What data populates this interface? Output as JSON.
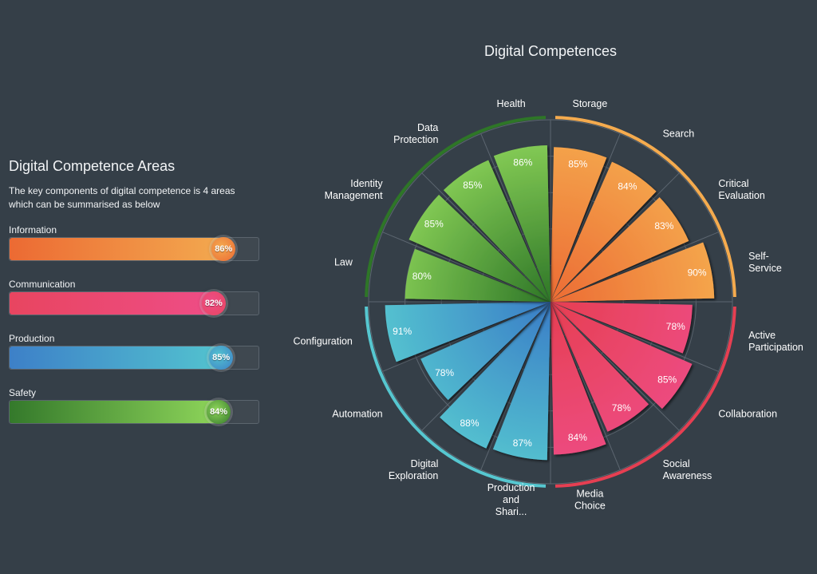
{
  "left_panel": {
    "title": "Digital Competence Areas",
    "description": "The key components of digital competence is 4 areas which can be summarised as below",
    "areas": [
      {
        "label": "Information",
        "value": 86,
        "value_label": "86%",
        "color_start": "#ec6a33",
        "color_end": "#f3a94f"
      },
      {
        "label": "Communication",
        "value": 82,
        "value_label": "82%",
        "color_start": "#e84560",
        "color_end": "#ee4d86"
      },
      {
        "label": "Production",
        "value": 85,
        "value_label": "85%",
        "color_start": "#3d80c8",
        "color_end": "#53c3cf"
      },
      {
        "label": "Safety",
        "value": 84,
        "value_label": "84%",
        "color_start": "#34792b",
        "color_end": "#8ed55a"
      }
    ]
  },
  "chart_data": {
    "type": "polar-bar",
    "title": "Digital Competences",
    "rmax": 100,
    "grid": true,
    "categories": [
      {
        "label": [
          "Storage"
        ],
        "value": 85,
        "value_label": "85%",
        "group": 0
      },
      {
        "label": [
          "Search"
        ],
        "value": 84,
        "value_label": "84%",
        "group": 0
      },
      {
        "label": [
          "Critical",
          "Evaluation"
        ],
        "value": 83,
        "value_label": "83%",
        "group": 0
      },
      {
        "label": [
          "Self-",
          "Service"
        ],
        "value": 90,
        "value_label": "90%",
        "group": 0
      },
      {
        "label": [
          "Active",
          "Participation"
        ],
        "value": 78,
        "value_label": "78%",
        "group": 1
      },
      {
        "label": [
          "Collaboration"
        ],
        "value": 85,
        "value_label": "85%",
        "group": 1
      },
      {
        "label": [
          "Social",
          "Awareness"
        ],
        "value": 78,
        "value_label": "78%",
        "group": 1
      },
      {
        "label": [
          "Media",
          "Choice"
        ],
        "value": 84,
        "value_label": "84%",
        "group": 1
      },
      {
        "label": [
          "Production",
          "and",
          "Shari..."
        ],
        "value": 87,
        "value_label": "87%",
        "group": 2
      },
      {
        "label": [
          "Digital",
          "Exploration"
        ],
        "value": 88,
        "value_label": "88%",
        "group": 2
      },
      {
        "label": [
          "Automation"
        ],
        "value": 78,
        "value_label": "78%",
        "group": 2
      },
      {
        "label": [
          "Configuration"
        ],
        "value": 91,
        "value_label": "91%",
        "group": 2
      },
      {
        "label": [
          "Law"
        ],
        "value": 80,
        "value_label": "80%",
        "group": 3
      },
      {
        "label": [
          "Identity",
          "Management"
        ],
        "value": 85,
        "value_label": "85%",
        "group": 3
      },
      {
        "label": [
          "Data",
          "Protection"
        ],
        "value": 85,
        "value_label": "85%",
        "group": 3
      },
      {
        "label": [
          "Health"
        ],
        "value": 86,
        "value_label": "86%",
        "group": 3
      }
    ],
    "groups": [
      {
        "name": "Information",
        "color_light": "#f5ab4e",
        "color_dark": "#ec6b34"
      },
      {
        "name": "Communication",
        "color_light": "#ee4d86",
        "color_dark": "#e63f52"
      },
      {
        "name": "Production",
        "color_light": "#56c7d0",
        "color_dark": "#3a7dc7"
      },
      {
        "name": "Safety",
        "color_light": "#8fd65b",
        "color_dark": "#2e7627"
      }
    ],
    "grid_color": "#5c6670",
    "label_color": "#ffffff"
  }
}
